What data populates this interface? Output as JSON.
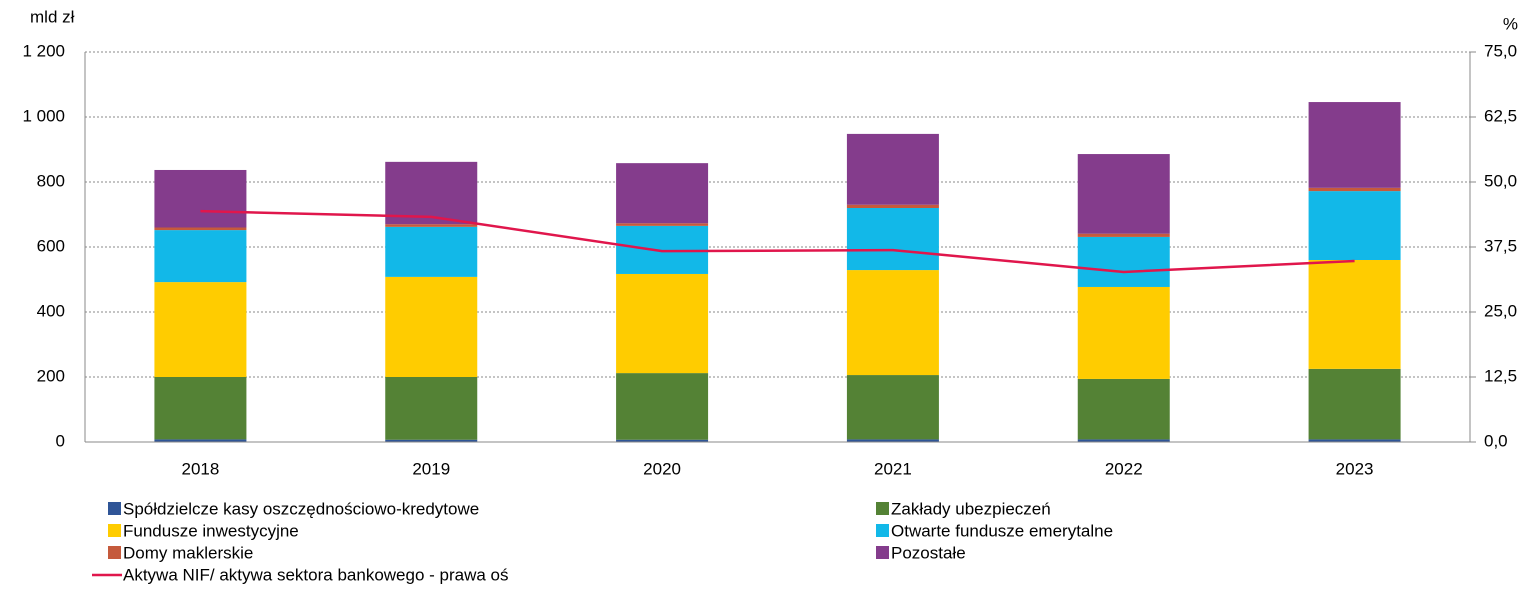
{
  "chart_data": {
    "type": "bar",
    "stacked": true,
    "y_label": "mld zł",
    "y2_label": "%",
    "categories": [
      "2018",
      "2019",
      "2020",
      "2021",
      "2022",
      "2023"
    ],
    "series": [
      {
        "name": "Spółdzielcze kasy oszczędnościowo-kredytowe",
        "color": "#2f5597",
        "values": [
          8,
          7,
          7,
          8,
          8,
          8
        ]
      },
      {
        "name": "Zakłady ubezpieczeń",
        "color": "#548235",
        "values": [
          192,
          193,
          205,
          198,
          186,
          217
        ]
      },
      {
        "name": "Fundusze inwestycyjne",
        "color": "#ffcc00",
        "values": [
          292,
          308,
          305,
          323,
          283,
          335
        ]
      },
      {
        "name": "Otwarte fundusze emerytalne",
        "color": "#12b8e8",
        "values": [
          160,
          154,
          148,
          191,
          154,
          212
        ]
      },
      {
        "name": "Domy maklerskie",
        "color": "#c55a3c",
        "values": [
          8,
          8,
          8,
          10,
          10,
          10
        ]
      },
      {
        "name": "Pozostałe",
        "color": "#843c8c",
        "values": [
          177,
          192,
          185,
          218,
          245,
          264
        ]
      },
      {
        "name": "Aktywa NIF/ aktywa sektora bankowego - prawa oś",
        "color": "#e0164c",
        "type": "line",
        "axis": "y2",
        "values": [
          44.4,
          43.3,
          36.7,
          36.9,
          32.7,
          34.8
        ]
      }
    ],
    "ylim": [
      0,
      1200
    ],
    "yticks": [
      0,
      200,
      400,
      600,
      800,
      {
        "value": 1000,
        "label": "1 000"
      },
      {
        "value": 1200,
        "label": "1 200"
      }
    ],
    "y2lim": [
      0,
      75
    ],
    "y2ticks": [
      {
        "value": 0,
        "label": "0,0"
      },
      {
        "value": 12.5,
        "label": "12,5"
      },
      {
        "value": 25,
        "label": "25,0"
      },
      {
        "value": 37.5,
        "label": "37,5"
      },
      {
        "value": 50,
        "label": "50,0"
      },
      {
        "value": 62.5,
        "label": "62,5"
      },
      {
        "value": 75,
        "label": "75,0"
      }
    ],
    "grid": true,
    "legend": "bottom"
  }
}
